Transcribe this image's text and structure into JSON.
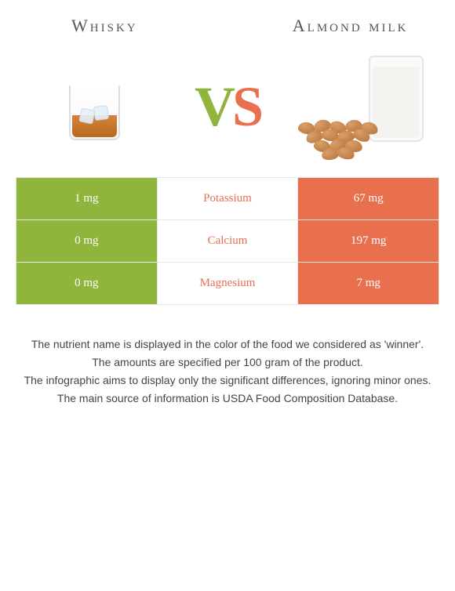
{
  "foods": {
    "left": {
      "title": "Whisky",
      "color": "#8fb53c"
    },
    "right": {
      "title": "Almond milk",
      "color": "#e8704f"
    }
  },
  "vs": {
    "v": "V",
    "s": "S"
  },
  "rows": [
    {
      "nutrient": "Potassium",
      "left": "1 mg",
      "right": "67 mg",
      "winner": "right"
    },
    {
      "nutrient": "Calcium",
      "left": "0 mg",
      "right": "197 mg",
      "winner": "right"
    },
    {
      "nutrient": "Magnesium",
      "left": "0 mg",
      "right": "7 mg",
      "winner": "right"
    }
  ],
  "notes": [
    "The nutrient name is displayed in the color of the food we considered as 'winner'.",
    "The amounts are specified per 100 gram of the product.",
    "The infographic aims to display only the significant differences, ignoring minor ones.",
    "The main source of information is USDA Food Composition Database."
  ]
}
